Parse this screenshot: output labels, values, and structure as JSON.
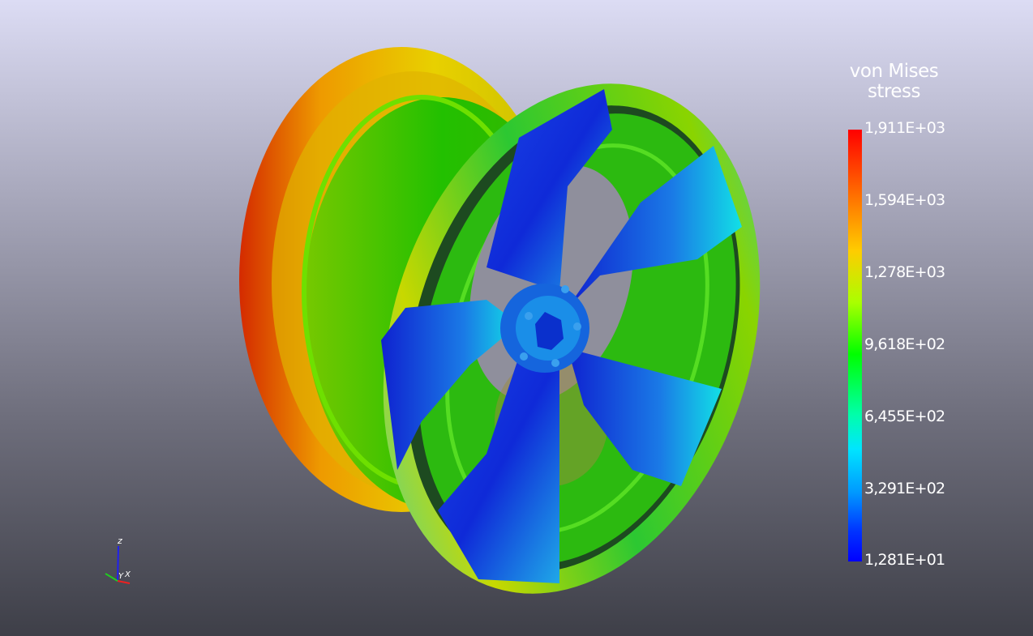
{
  "legend": {
    "title_line1": "von Mises",
    "title_line2": "stress",
    "ticks": [
      "1,911E+03",
      "1,594E+03",
      "1,278E+03",
      "9,618E+02",
      "6,455E+02",
      "3,291E+02",
      "1,281E+01"
    ]
  },
  "axes_triad": {
    "z_label": "z",
    "y_label": "Y",
    "x_label": "X"
  },
  "colors": {
    "max_stress": "#ff0000",
    "mid_stress": "#00ff00",
    "min_stress": "#0000ff"
  }
}
